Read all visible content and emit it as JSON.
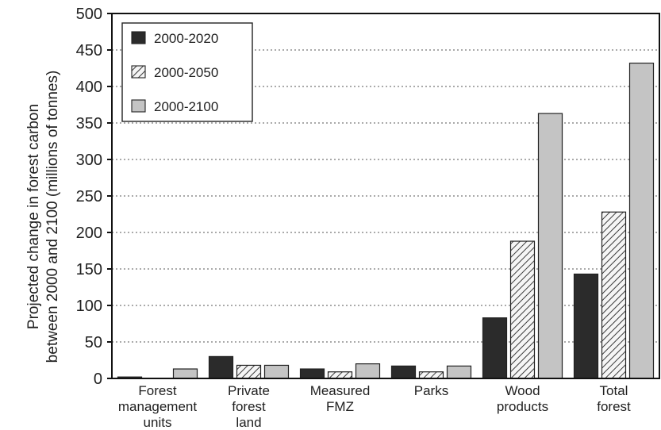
{
  "chart_data": {
    "type": "bar",
    "title": "",
    "ylabel": "Projected change in forest carbon between 2000 and 2100 (millions of tonnes)",
    "ylim": [
      0,
      500
    ],
    "yticks": [
      0,
      50,
      100,
      150,
      200,
      250,
      300,
      350,
      400,
      450,
      500
    ],
    "grid": true,
    "legend_placement": "top-left",
    "categories": [
      [
        "Forest",
        "management",
        "units"
      ],
      [
        "Private",
        "forest",
        "land"
      ],
      [
        "Measured",
        "FMZ"
      ],
      [
        "Parks"
      ],
      [
        "Wood",
        "products"
      ],
      [
        "Total",
        "forest"
      ]
    ],
    "series": [
      {
        "name": "2000-2020",
        "values": [
          2,
          30,
          13,
          17,
          83,
          143
        ],
        "color": "#2b2b2b",
        "pattern": "solid"
      },
      {
        "name": "2000-2050",
        "values": [
          0,
          18,
          9,
          9,
          188,
          228
        ],
        "color": "#a9a9a9",
        "pattern": "hatched"
      },
      {
        "name": "2000-2100",
        "values": [
          13,
          18,
          20,
          17,
          363,
          432
        ],
        "color": "#c4c4c4",
        "pattern": "solid"
      }
    ]
  }
}
